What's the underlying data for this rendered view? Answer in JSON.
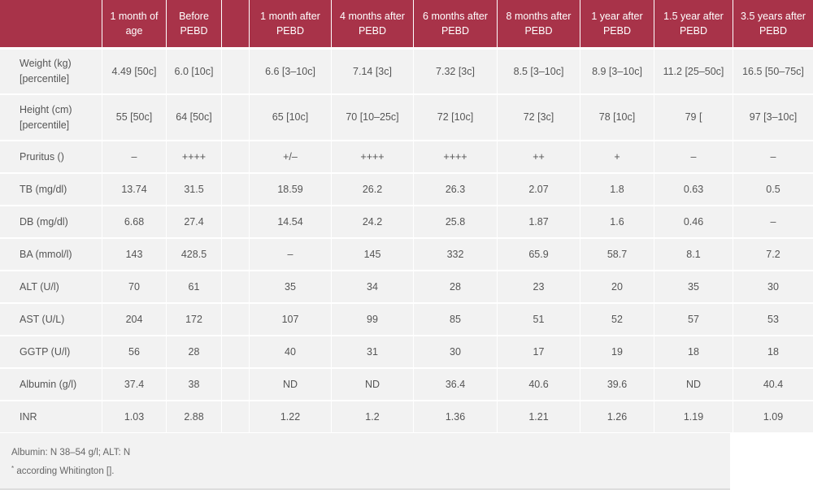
{
  "columns": [
    "",
    "1 month of age",
    "Before PEBD",
    "",
    "1 month after PEBD",
    "4 months after PEBD",
    "6 months after PEBD",
    "8 months after PEBD",
    "1 year after PEBD",
    "1.5 year after PEBD",
    "3.5 years after PEBD"
  ],
  "rows": [
    [
      "Weight (kg) [percentile]",
      "4.49 [50c]",
      "6.0 [10c]",
      "",
      "6.6 [3–10c]",
      "7.14 [3c]",
      "7.32 [3c]",
      "8.5 [3–10c]",
      "8.9 [3–10c]",
      "11.2 [25–50c]",
      "16.5 [50–75c]"
    ],
    [
      "Height (cm) [percentile]",
      "55 [50c]",
      "64 [50c]",
      "",
      "65 [10c]",
      "70 [10–25c]",
      "72 [10c]",
      "72 [3c]",
      "78 [10c]",
      "79 [",
      "97 [3–10c]"
    ],
    [
      "Pruritus ()",
      "–",
      "++++",
      "",
      "+/–",
      "++++",
      "++++",
      "++",
      "+",
      "–",
      "–"
    ],
    [
      "TB (mg/dl)",
      "13.74",
      "31.5",
      "",
      "18.59",
      "26.2",
      "26.3",
      "2.07",
      "1.8",
      "0.63",
      "0.5"
    ],
    [
      "DB (mg/dl)",
      "6.68",
      "27.4",
      "",
      "14.54",
      "24.2",
      "25.8",
      "1.87",
      "1.6",
      "0.46",
      "–"
    ],
    [
      "BA (mmol/l)",
      "143",
      "428.5",
      "",
      "–",
      "145",
      "332",
      "65.9",
      "58.7",
      "8.1",
      "7.2"
    ],
    [
      "ALT (U/l)",
      "70",
      "61",
      "",
      "35",
      "34",
      "28",
      "23",
      "20",
      "35",
      "30"
    ],
    [
      "AST (U/L)",
      "204",
      "172",
      "",
      "107",
      "99",
      "85",
      "51",
      "52",
      "57",
      "53"
    ],
    [
      "GGTP (U/l)",
      "56",
      "28",
      "",
      "40",
      "31",
      "30",
      "17",
      "19",
      "18",
      "18"
    ],
    [
      "Albumin (g/l)",
      "37.4",
      "38",
      "",
      "ND",
      "ND",
      "36.4",
      "40.6",
      "39.6",
      "ND",
      "40.4"
    ],
    [
      "INR",
      "1.03",
      "2.88",
      "",
      "1.22",
      "1.2",
      "1.36",
      "1.21",
      "1.26",
      "1.19",
      "1.09"
    ]
  ],
  "footnote": {
    "line1": "Albumin: N 38–54 g/l; ALT: N",
    "marker": "*",
    "line2": " according Whitington []."
  },
  "colors": {
    "header_bg": "#a83349",
    "header_text": "#ffffff",
    "cell_bg": "#f2f2f2",
    "text": "#555555"
  }
}
